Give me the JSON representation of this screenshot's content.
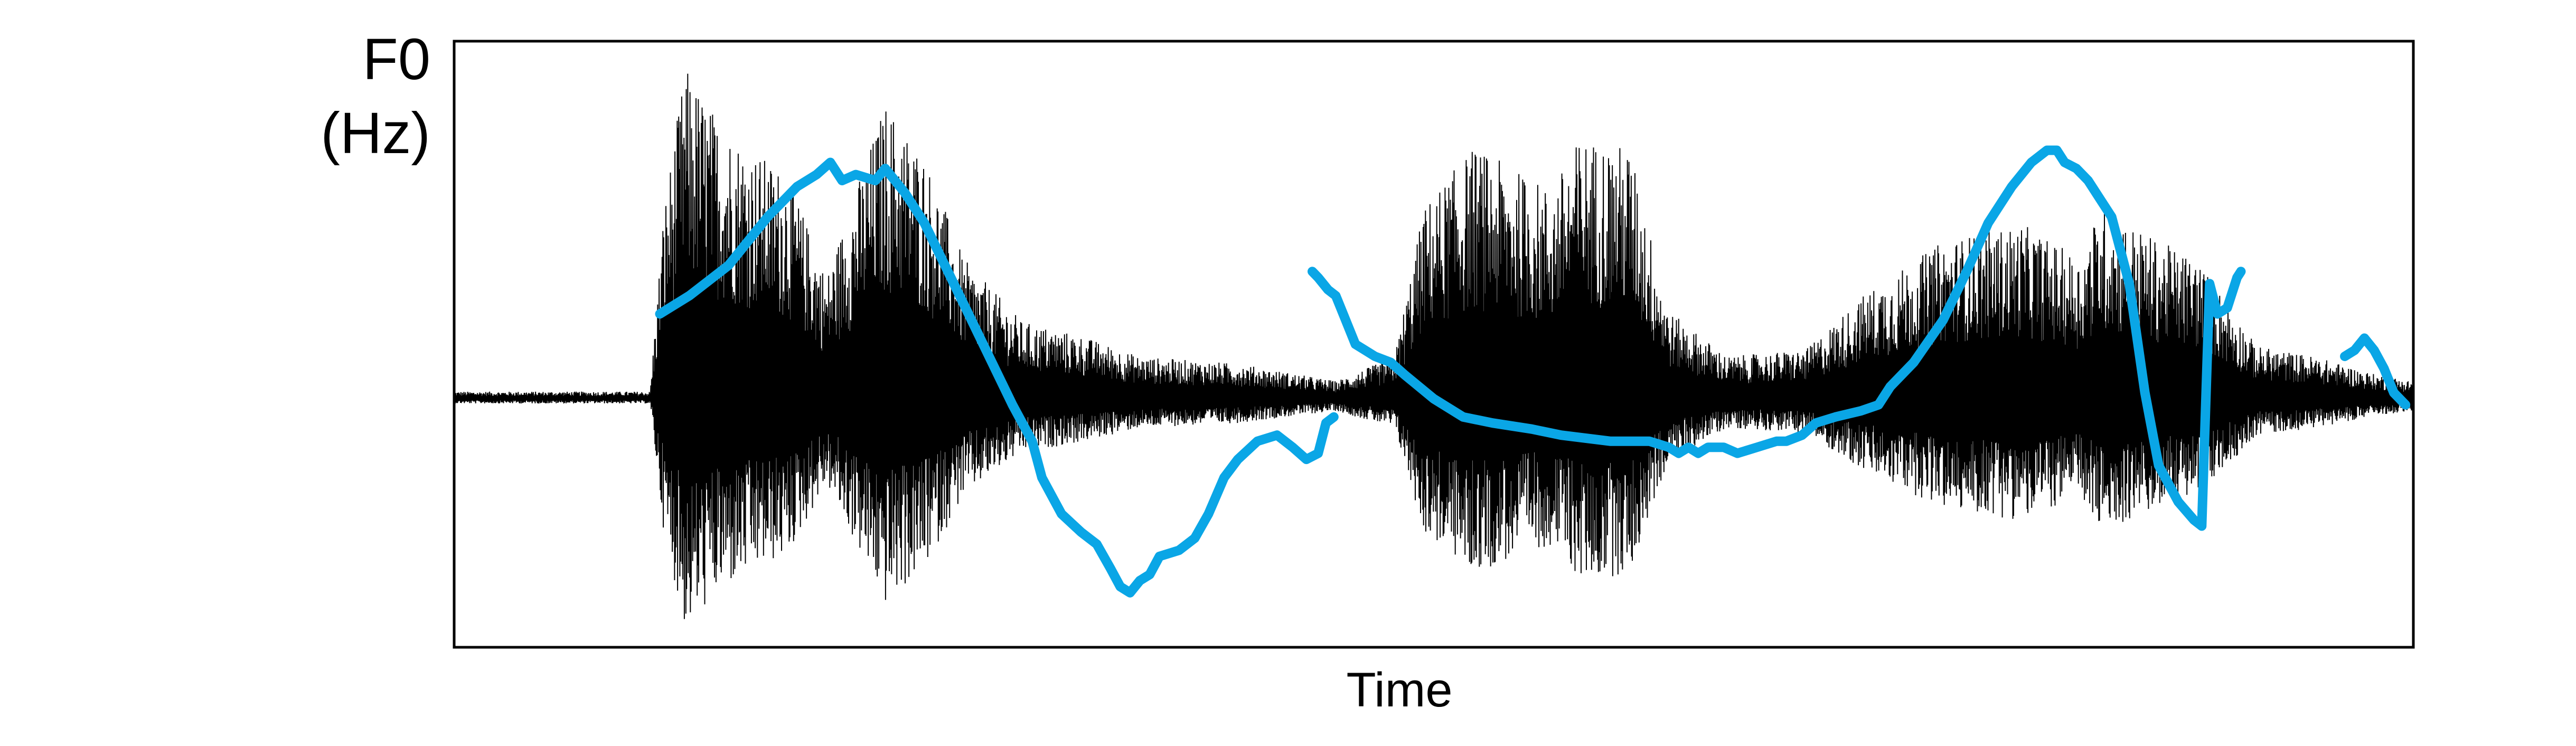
{
  "chart_data": {
    "type": "line",
    "title": "",
    "ylabel_lines": [
      "F0",
      "(Hz)"
    ],
    "xlabel": "Time",
    "xlim": [
      0,
      1
    ],
    "ylim": [
      0,
      1
    ],
    "grid": false,
    "colors": {
      "f0_contour": "#0AA6E6",
      "waveform": "#000000",
      "frame": "#000000"
    },
    "waveform_envelope": [
      [
        0.0,
        0.02
      ],
      [
        0.1,
        0.02
      ],
      [
        0.107,
        0.55
      ],
      [
        0.118,
        0.95
      ],
      [
        0.135,
        0.8
      ],
      [
        0.155,
        0.7
      ],
      [
        0.17,
        0.65
      ],
      [
        0.19,
        0.35
      ],
      [
        0.22,
        0.85
      ],
      [
        0.24,
        0.7
      ],
      [
        0.26,
        0.4
      ],
      [
        0.29,
        0.22
      ],
      [
        0.32,
        0.18
      ],
      [
        0.35,
        0.12
      ],
      [
        0.4,
        0.1
      ],
      [
        0.44,
        0.06
      ],
      [
        0.45,
        0.05
      ],
      [
        0.48,
        0.12
      ],
      [
        0.495,
        0.55
      ],
      [
        0.52,
        0.72
      ],
      [
        0.56,
        0.6
      ],
      [
        0.575,
        0.75
      ],
      [
        0.6,
        0.72
      ],
      [
        0.62,
        0.25
      ],
      [
        0.65,
        0.12
      ],
      [
        0.69,
        0.14
      ],
      [
        0.72,
        0.3
      ],
      [
        0.76,
        0.45
      ],
      [
        0.8,
        0.5
      ],
      [
        0.83,
        0.4
      ],
      [
        0.84,
        0.55
      ],
      [
        0.87,
        0.45
      ],
      [
        0.89,
        0.4
      ],
      [
        0.92,
        0.15
      ],
      [
        0.95,
        0.12
      ],
      [
        0.98,
        0.07
      ],
      [
        1.0,
        0.05
      ]
    ],
    "f0_segments": [
      [
        [
          0.105,
          0.55
        ],
        [
          0.12,
          0.58
        ],
        [
          0.14,
          0.63
        ],
        [
          0.16,
          0.71
        ],
        [
          0.175,
          0.76
        ],
        [
          0.185,
          0.78
        ],
        [
          0.192,
          0.8
        ],
        [
          0.198,
          0.77
        ],
        [
          0.205,
          0.78
        ],
        [
          0.215,
          0.77
        ],
        [
          0.22,
          0.79
        ],
        [
          0.23,
          0.75
        ],
        [
          0.24,
          0.7
        ],
        [
          0.255,
          0.6
        ],
        [
          0.27,
          0.5
        ],
        [
          0.285,
          0.4
        ],
        [
          0.295,
          0.34
        ],
        [
          0.3,
          0.28
        ],
        [
          0.31,
          0.22
        ],
        [
          0.32,
          0.19
        ],
        [
          0.328,
          0.17
        ],
        [
          0.335,
          0.13
        ],
        [
          0.34,
          0.1
        ],
        [
          0.345,
          0.09
        ],
        [
          0.35,
          0.11
        ],
        [
          0.355,
          0.12
        ],
        [
          0.36,
          0.15
        ],
        [
          0.37,
          0.16
        ],
        [
          0.378,
          0.18
        ],
        [
          0.385,
          0.22
        ],
        [
          0.393,
          0.28
        ],
        [
          0.4,
          0.31
        ],
        [
          0.41,
          0.34
        ],
        [
          0.42,
          0.35
        ],
        [
          0.428,
          0.33
        ],
        [
          0.435,
          0.31
        ],
        [
          0.441,
          0.32
        ],
        [
          0.445,
          0.37
        ],
        [
          0.449,
          0.38
        ]
      ],
      [
        [
          0.438,
          0.62
        ],
        [
          0.441,
          0.61
        ],
        [
          0.446,
          0.59
        ],
        [
          0.45,
          0.58
        ],
        [
          0.455,
          0.54
        ],
        [
          0.46,
          0.5
        ],
        [
          0.465,
          0.49
        ],
        [
          0.47,
          0.48
        ],
        [
          0.478,
          0.47
        ],
        [
          0.485,
          0.45
        ],
        [
          0.5,
          0.41
        ],
        [
          0.515,
          0.38
        ],
        [
          0.53,
          0.37
        ],
        [
          0.55,
          0.36
        ],
        [
          0.565,
          0.35
        ],
        [
          0.59,
          0.34
        ],
        [
          0.61,
          0.34
        ],
        [
          0.62,
          0.33
        ],
        [
          0.625,
          0.32
        ],
        [
          0.63,
          0.33
        ],
        [
          0.635,
          0.32
        ],
        [
          0.64,
          0.33
        ],
        [
          0.648,
          0.33
        ],
        [
          0.655,
          0.32
        ],
        [
          0.665,
          0.33
        ],
        [
          0.675,
          0.34
        ],
        [
          0.68,
          0.34
        ],
        [
          0.688,
          0.35
        ],
        [
          0.695,
          0.37
        ],
        [
          0.705,
          0.38
        ],
        [
          0.718,
          0.39
        ],
        [
          0.727,
          0.4
        ],
        [
          0.733,
          0.43
        ],
        [
          0.745,
          0.47
        ],
        [
          0.76,
          0.54
        ],
        [
          0.772,
          0.62
        ],
        [
          0.783,
          0.7
        ],
        [
          0.795,
          0.76
        ],
        [
          0.805,
          0.8
        ],
        [
          0.813,
          0.82
        ],
        [
          0.818,
          0.82
        ],
        [
          0.822,
          0.8
        ],
        [
          0.828,
          0.79
        ],
        [
          0.834,
          0.77
        ],
        [
          0.84,
          0.74
        ],
        [
          0.846,
          0.71
        ],
        [
          0.855,
          0.6
        ],
        [
          0.863,
          0.42
        ],
        [
          0.87,
          0.3
        ],
        [
          0.88,
          0.24
        ],
        [
          0.888,
          0.21
        ],
        [
          0.892,
          0.2
        ],
        [
          0.896,
          0.6
        ],
        [
          0.9,
          0.55
        ],
        [
          0.905,
          0.56
        ],
        [
          0.91,
          0.61
        ],
        [
          0.912,
          0.62
        ]
      ],
      [
        [
          0.965,
          0.48
        ],
        [
          0.97,
          0.49
        ],
        [
          0.975,
          0.51
        ],
        [
          0.98,
          0.49
        ],
        [
          0.985,
          0.46
        ],
        [
          0.99,
          0.42
        ],
        [
          0.996,
          0.4
        ]
      ]
    ]
  }
}
